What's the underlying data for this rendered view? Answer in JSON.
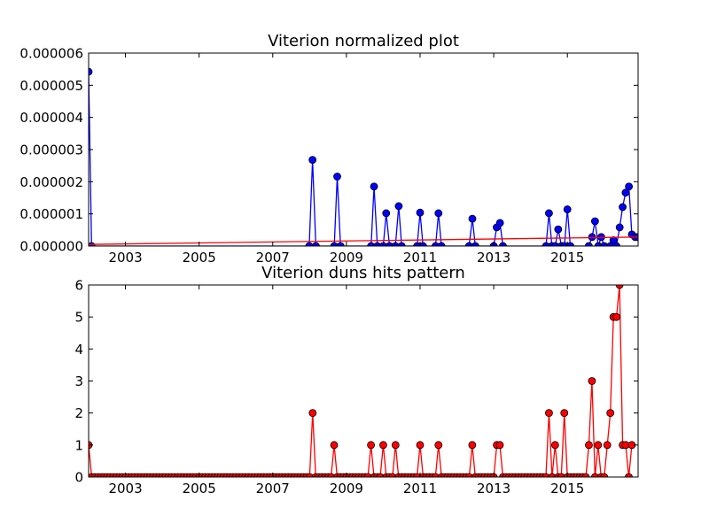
{
  "figure_background": "#ffffff",
  "chart_data": [
    {
      "type": "line",
      "title": "Viterion normalized plot",
      "xlabel": "",
      "ylabel": "",
      "xlim": [
        2002.0,
        2016.92
      ],
      "ylim": [
        0,
        6e-06
      ],
      "x_ticks": [
        2003,
        2005,
        2007,
        2009,
        2011,
        2013,
        2015
      ],
      "x_tick_labels": [
        "2003",
        "2005",
        "2007",
        "2009",
        "2011",
        "2013",
        "2015"
      ],
      "y_ticks": [
        0,
        1e-06,
        2e-06,
        3e-06,
        4e-06,
        5e-06,
        6e-06
      ],
      "y_tick_labels": [
        "0.000000",
        "0.000001",
        "0.000002",
        "0.000003",
        "0.000004",
        "0.000005",
        "0.000006"
      ],
      "grid": false,
      "series": [
        {
          "color": "#0000ff",
          "marker": "circle",
          "marker_fill": "#0000ff",
          "points": [
            [
              2002.0,
              5.42e-06
            ],
            [
              2002.08,
              0
            ],
            [
              2007.99,
              0
            ],
            [
              2008.08,
              2.68e-06
            ],
            [
              2008.17,
              0
            ],
            [
              2008.67,
              0
            ],
            [
              2008.75,
              2.16e-06
            ],
            [
              2008.84,
              0
            ],
            [
              2009.67,
              0
            ],
            [
              2009.75,
              1.85e-06
            ],
            [
              2009.84,
              0
            ],
            [
              2010.0,
              0
            ],
            [
              2010.08,
              1.02e-06
            ],
            [
              2010.17,
              0
            ],
            [
              2010.33,
              0
            ],
            [
              2010.42,
              1.24e-06
            ],
            [
              2010.5,
              0
            ],
            [
              2010.92,
              0
            ],
            [
              2011.0,
              1.04e-06
            ],
            [
              2011.08,
              0
            ],
            [
              2011.42,
              0
            ],
            [
              2011.5,
              1.02e-06
            ],
            [
              2011.58,
              0
            ],
            [
              2012.33,
              0
            ],
            [
              2012.42,
              8.5e-07
            ],
            [
              2012.5,
              0
            ],
            [
              2013.0,
              0
            ],
            [
              2013.08,
              5.8e-07
            ],
            [
              2013.17,
              7.2e-07
            ],
            [
              2013.25,
              0
            ],
            [
              2014.42,
              0
            ],
            [
              2014.5,
              1.02e-06
            ],
            [
              2014.58,
              0
            ],
            [
              2014.67,
              0
            ],
            [
              2014.75,
              5.2e-07
            ],
            [
              2014.84,
              0
            ],
            [
              2014.92,
              0
            ],
            [
              2015.0,
              1.14e-06
            ],
            [
              2015.08,
              0
            ],
            [
              2015.58,
              0
            ],
            [
              2015.67,
              2.8e-07
            ],
            [
              2015.75,
              7.7e-07
            ],
            [
              2015.84,
              0
            ],
            [
              2015.92,
              2.8e-07
            ],
            [
              2016.0,
              0
            ],
            [
              2016.17,
              0
            ],
            [
              2016.25,
              1.8e-07
            ],
            [
              2016.33,
              0
            ],
            [
              2016.42,
              5.8e-07
            ],
            [
              2016.5,
              1.21e-06
            ],
            [
              2016.58,
              1.66e-06
            ],
            [
              2016.67,
              1.85e-06
            ],
            [
              2016.75,
              3.6e-07
            ],
            [
              2016.84,
              2.8e-07
            ],
            [
              2016.92,
              2.8e-07
            ]
          ]
        },
        {
          "color": "#ff0000",
          "marker": "none",
          "points": [
            [
              2002.0,
              5e-08
            ],
            [
              2016.92,
              2.8e-07
            ]
          ]
        }
      ]
    },
    {
      "type": "line",
      "title": "Viterion duns hits pattern",
      "xlabel": "",
      "ylabel": "",
      "xlim": [
        2002.0,
        2016.92
      ],
      "ylim": [
        0,
        6
      ],
      "x_ticks": [
        2003,
        2005,
        2007,
        2009,
        2011,
        2013,
        2015
      ],
      "x_tick_labels": [
        "2003",
        "2005",
        "2007",
        "2009",
        "2011",
        "2013",
        "2015"
      ],
      "y_ticks": [
        0,
        1,
        2,
        3,
        4,
        5,
        6
      ],
      "y_tick_labels": [
        "0",
        "1",
        "2",
        "3",
        "4",
        "5",
        "6"
      ],
      "grid": false,
      "monthly_start": [
        2002,
        1
      ],
      "series": [
        {
          "color": "#ff0000",
          "marker": "circle",
          "marker_fill": "#ff0000",
          "marker_edge": "#000000",
          "values": [
            1,
            0,
            0,
            0,
            0,
            0,
            0,
            0,
            0,
            0,
            0,
            0,
            0,
            0,
            0,
            0,
            0,
            0,
            0,
            0,
            0,
            0,
            0,
            0,
            0,
            0,
            0,
            0,
            0,
            0,
            0,
            0,
            0,
            0,
            0,
            0,
            0,
            0,
            0,
            0,
            0,
            0,
            0,
            0,
            0,
            0,
            0,
            0,
            0,
            0,
            0,
            0,
            0,
            0,
            0,
            0,
            0,
            0,
            0,
            0,
            0,
            0,
            0,
            0,
            0,
            0,
            0,
            0,
            0,
            0,
            0,
            0,
            0,
            2,
            0,
            0,
            0,
            0,
            0,
            0,
            1,
            0,
            0,
            0,
            0,
            0,
            0,
            0,
            0,
            0,
            0,
            0,
            1,
            0,
            0,
            0,
            1,
            0,
            0,
            0,
            1,
            0,
            0,
            0,
            0,
            0,
            0,
            0,
            1,
            0,
            0,
            0,
            0,
            0,
            1,
            0,
            0,
            0,
            0,
            0,
            0,
            0,
            0,
            0,
            0,
            1,
            0,
            0,
            0,
            0,
            0,
            0,
            0,
            1,
            1,
            0,
            0,
            0,
            0,
            0,
            0,
            0,
            0,
            0,
            0,
            0,
            0,
            0,
            0,
            0,
            2,
            0,
            1,
            0,
            0,
            2,
            0,
            0,
            0,
            0,
            0,
            0,
            0,
            1,
            3,
            0,
            1,
            0,
            0,
            1,
            2,
            5,
            5,
            6,
            1,
            1,
            0,
            1
          ]
        }
      ]
    }
  ]
}
